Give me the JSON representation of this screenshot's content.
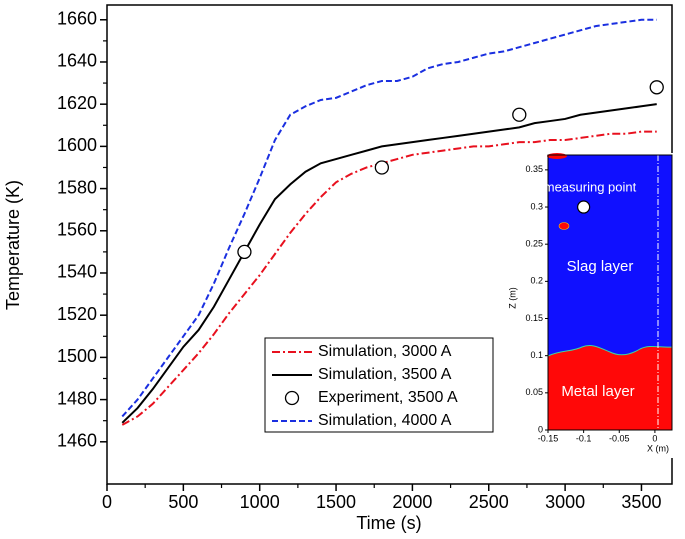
{
  "chart_data": [
    {
      "type": "line",
      "xlabel": "Time (s)",
      "ylabel": "Temperature (K)",
      "xlim": [
        0,
        3700
      ],
      "ylim": [
        1440,
        1667
      ],
      "xticks": [
        0,
        500,
        1000,
        1500,
        2000,
        2500,
        3000,
        3500
      ],
      "yticks": [
        1460,
        1480,
        1500,
        1520,
        1540,
        1560,
        1580,
        1600,
        1620,
        1640,
        1660
      ],
      "x": [
        100,
        200,
        300,
        400,
        500,
        600,
        700,
        800,
        900,
        1000,
        1100,
        1200,
        1300,
        1400,
        1500,
        1600,
        1700,
        1800,
        1900,
        2000,
        2100,
        2200,
        2300,
        2400,
        2500,
        2600,
        2700,
        2800,
        2900,
        3000,
        3100,
        3200,
        3300,
        3400,
        3500,
        3600
      ],
      "legend": "lower center",
      "series": [
        {
          "name": "Simulation, 3000 A",
          "color": "#e8101e",
          "line_style": "dashdot",
          "values": [
            1468,
            1472,
            1478,
            1486,
            1494,
            1502,
            1511,
            1521,
            1530,
            1539,
            1549,
            1559,
            1568,
            1576,
            1583,
            1587,
            1590,
            1592,
            1594,
            1596,
            1597,
            1598,
            1599,
            1600,
            1600,
            1601,
            1602,
            1602,
            1603,
            1603,
            1604,
            1605,
            1606,
            1606,
            1607,
            1607
          ]
        },
        {
          "name": "Simulation, 3500 A",
          "color": "#000000",
          "line_style": "solid",
          "values": [
            1469,
            1476,
            1485,
            1495,
            1505,
            1513,
            1524,
            1537,
            1550,
            1563,
            1575,
            1582,
            1588,
            1592,
            1594,
            1596,
            1598,
            1600,
            1601,
            1602,
            1603,
            1604,
            1605,
            1606,
            1607,
            1608,
            1609,
            1611,
            1612,
            1613,
            1615,
            1616,
            1617,
            1618,
            1619,
            1620
          ]
        },
        {
          "name": "Experiment, 3500 A",
          "color": "#000000",
          "line_style": "none",
          "marker": "circle",
          "x": [
            900,
            1800,
            2700,
            3600
          ],
          "values": [
            1550,
            1590,
            1615,
            1628
          ]
        },
        {
          "name": "Simulation, 4000 A",
          "color": "#1a2fe0",
          "line_style": "dashed",
          "values": [
            1472,
            1480,
            1490,
            1500,
            1510,
            1520,
            1535,
            1552,
            1568,
            1585,
            1603,
            1615,
            1619,
            1622,
            1623,
            1626,
            1629,
            1631,
            1631,
            1633,
            1637,
            1639,
            1640,
            1642,
            1644,
            1645,
            1647,
            1649,
            1651,
            1653,
            1655,
            1657,
            1658,
            1659,
            1660,
            1660
          ]
        }
      ]
    },
    {
      "type": "contour",
      "xlabel": "X (m)",
      "ylabel": "Z (m)",
      "xlim": [
        -0.15,
        0.024
      ],
      "ylim": [
        0,
        0.37
      ],
      "xticks": [
        -0.15,
        -0.1,
        -0.05,
        0
      ],
      "yticks": [
        0,
        0.05,
        0.1,
        0.15,
        0.2,
        0.25,
        0.3,
        0.35
      ],
      "colors": {
        "slag": "#1010ff",
        "metal": "#ff0808"
      },
      "point": {
        "label": "measuring point",
        "x": -0.1,
        "y": 0.3
      },
      "annotations": [
        "Slag layer",
        "Metal layer"
      ]
    }
  ]
}
